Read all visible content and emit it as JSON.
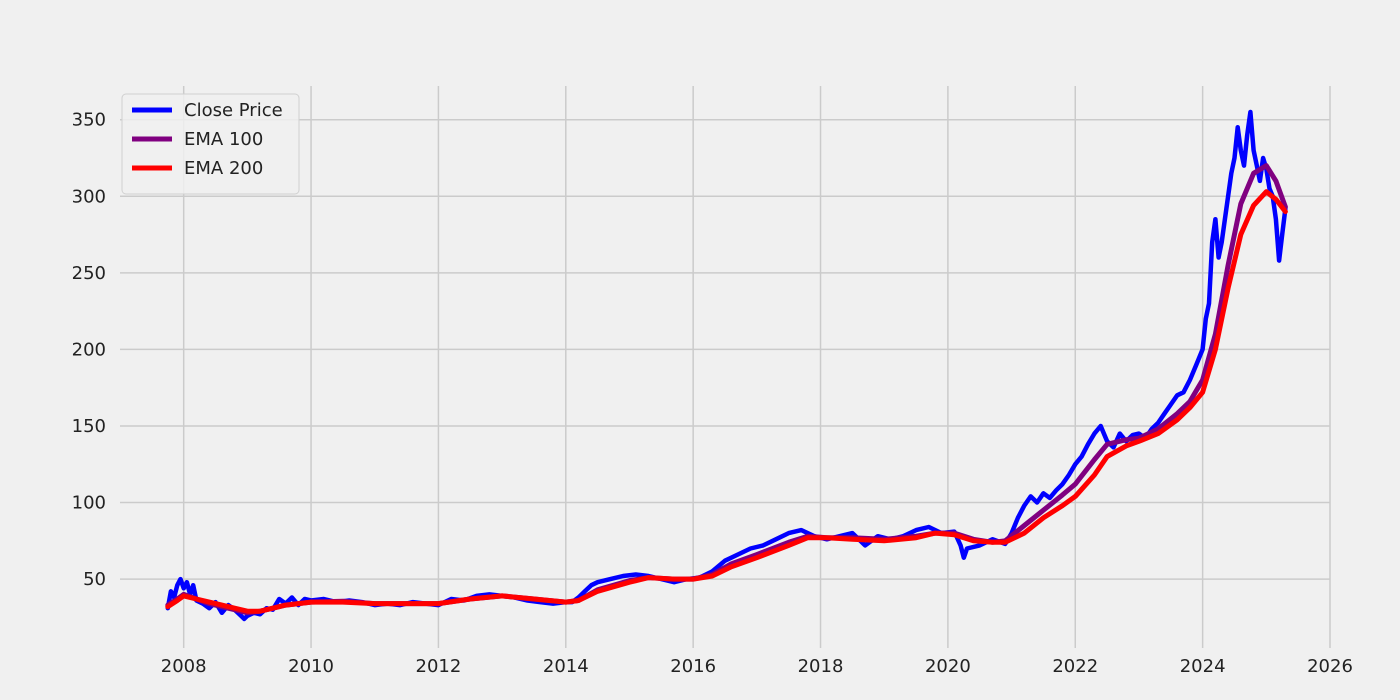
{
  "chart_data": {
    "type": "line",
    "title": "",
    "xlabel": "",
    "ylabel": "",
    "xlim": [
      2007.0,
      2026.0
    ],
    "ylim": [
      5,
      372
    ],
    "x_ticks": [
      2008,
      2010,
      2012,
      2014,
      2016,
      2018,
      2020,
      2022,
      2024,
      2026
    ],
    "x_tick_labels": [
      "2008",
      "2010",
      "2012",
      "2014",
      "2016",
      "2018",
      "2020",
      "2022",
      "2024",
      "2026"
    ],
    "y_ticks": [
      50,
      100,
      150,
      200,
      250,
      300,
      350
    ],
    "y_tick_labels": [
      "50",
      "100",
      "150",
      "200",
      "250",
      "300",
      "350"
    ],
    "grid": true,
    "legend_position": "top-left",
    "background": "#f0f0f0",
    "grid_color": "#cbcbcb",
    "series": [
      {
        "name": "Close Price",
        "color": "#0000ff",
        "points": [
          [
            2007.75,
            31
          ],
          [
            2007.8,
            42
          ],
          [
            2007.85,
            38
          ],
          [
            2007.9,
            46
          ],
          [
            2007.95,
            50
          ],
          [
            2008.0,
            44
          ],
          [
            2008.05,
            48
          ],
          [
            2008.1,
            40
          ],
          [
            2008.15,
            46
          ],
          [
            2008.2,
            36
          ],
          [
            2008.3,
            34
          ],
          [
            2008.4,
            31
          ],
          [
            2008.5,
            35
          ],
          [
            2008.6,
            28
          ],
          [
            2008.7,
            33
          ],
          [
            2008.8,
            30
          ],
          [
            2008.9,
            26
          ],
          [
            2008.95,
            24
          ],
          [
            2009.0,
            26
          ],
          [
            2009.1,
            28
          ],
          [
            2009.2,
            27
          ],
          [
            2009.3,
            31
          ],
          [
            2009.4,
            30
          ],
          [
            2009.5,
            37
          ],
          [
            2009.6,
            34
          ],
          [
            2009.7,
            38
          ],
          [
            2009.8,
            33
          ],
          [
            2009.9,
            37
          ],
          [
            2010.0,
            36
          ],
          [
            2010.2,
            37
          ],
          [
            2010.4,
            35
          ],
          [
            2010.6,
            36
          ],
          [
            2010.8,
            35
          ],
          [
            2011.0,
            33
          ],
          [
            2011.2,
            34
          ],
          [
            2011.4,
            33
          ],
          [
            2011.6,
            35
          ],
          [
            2011.8,
            34
          ],
          [
            2012.0,
            33
          ],
          [
            2012.2,
            37
          ],
          [
            2012.4,
            36
          ],
          [
            2012.6,
            39
          ],
          [
            2012.8,
            40
          ],
          [
            2013.0,
            39
          ],
          [
            2013.2,
            38
          ],
          [
            2013.4,
            36
          ],
          [
            2013.6,
            35
          ],
          [
            2013.8,
            34
          ],
          [
            2014.0,
            35
          ],
          [
            2014.1,
            35
          ],
          [
            2014.2,
            38
          ],
          [
            2014.3,
            42
          ],
          [
            2014.4,
            46
          ],
          [
            2014.5,
            48
          ],
          [
            2014.7,
            50
          ],
          [
            2014.9,
            52
          ],
          [
            2015.1,
            53
          ],
          [
            2015.3,
            52
          ],
          [
            2015.5,
            50
          ],
          [
            2015.7,
            48
          ],
          [
            2015.9,
            50
          ],
          [
            2016.1,
            51
          ],
          [
            2016.3,
            55
          ],
          [
            2016.5,
            62
          ],
          [
            2016.7,
            66
          ],
          [
            2016.9,
            70
          ],
          [
            2017.1,
            72
          ],
          [
            2017.3,
            76
          ],
          [
            2017.5,
            80
          ],
          [
            2017.7,
            82
          ],
          [
            2017.9,
            78
          ],
          [
            2018.1,
            76
          ],
          [
            2018.3,
            78
          ],
          [
            2018.5,
            80
          ],
          [
            2018.7,
            72
          ],
          [
            2018.9,
            78
          ],
          [
            2019.1,
            76
          ],
          [
            2019.3,
            78
          ],
          [
            2019.5,
            82
          ],
          [
            2019.7,
            84
          ],
          [
            2019.9,
            80
          ],
          [
            2020.1,
            81
          ],
          [
            2020.2,
            72
          ],
          [
            2020.25,
            64
          ],
          [
            2020.3,
            70
          ],
          [
            2020.5,
            72
          ],
          [
            2020.7,
            76
          ],
          [
            2020.9,
            73
          ],
          [
            2021.0,
            80
          ],
          [
            2021.1,
            90
          ],
          [
            2021.2,
            98
          ],
          [
            2021.3,
            104
          ],
          [
            2021.4,
            100
          ],
          [
            2021.5,
            106
          ],
          [
            2021.6,
            103
          ],
          [
            2021.7,
            108
          ],
          [
            2021.8,
            112
          ],
          [
            2021.9,
            118
          ],
          [
            2022.0,
            125
          ],
          [
            2022.1,
            130
          ],
          [
            2022.2,
            138
          ],
          [
            2022.3,
            145
          ],
          [
            2022.4,
            150
          ],
          [
            2022.5,
            140
          ],
          [
            2022.6,
            136
          ],
          [
            2022.7,
            145
          ],
          [
            2022.8,
            140
          ],
          [
            2022.9,
            144
          ],
          [
            2023.0,
            145
          ],
          [
            2023.1,
            142
          ],
          [
            2023.2,
            148
          ],
          [
            2023.3,
            152
          ],
          [
            2023.4,
            158
          ],
          [
            2023.5,
            164
          ],
          [
            2023.6,
            170
          ],
          [
            2023.7,
            172
          ],
          [
            2023.8,
            180
          ],
          [
            2023.9,
            190
          ],
          [
            2024.0,
            200
          ],
          [
            2024.05,
            220
          ],
          [
            2024.1,
            230
          ],
          [
            2024.15,
            270
          ],
          [
            2024.2,
            285
          ],
          [
            2024.25,
            260
          ],
          [
            2024.3,
            270
          ],
          [
            2024.35,
            285
          ],
          [
            2024.4,
            300
          ],
          [
            2024.45,
            315
          ],
          [
            2024.5,
            325
          ],
          [
            2024.55,
            345
          ],
          [
            2024.6,
            330
          ],
          [
            2024.65,
            320
          ],
          [
            2024.7,
            340
          ],
          [
            2024.75,
            355
          ],
          [
            2024.8,
            330
          ],
          [
            2024.85,
            320
          ],
          [
            2024.9,
            310
          ],
          [
            2024.95,
            325
          ],
          [
            2025.0,
            318
          ],
          [
            2025.05,
            305
          ],
          [
            2025.1,
            300
          ],
          [
            2025.15,
            285
          ],
          [
            2025.2,
            258
          ],
          [
            2025.25,
            275
          ],
          [
            2025.3,
            292
          ]
        ]
      },
      {
        "name": "EMA 100",
        "color": "#800080",
        "points": [
          [
            2007.75,
            33
          ],
          [
            2007.9,
            37
          ],
          [
            2008.0,
            40
          ],
          [
            2008.2,
            37
          ],
          [
            2008.4,
            34
          ],
          [
            2008.6,
            32
          ],
          [
            2008.8,
            30
          ],
          [
            2009.0,
            28
          ],
          [
            2009.2,
            29
          ],
          [
            2009.4,
            31
          ],
          [
            2009.6,
            33
          ],
          [
            2009.8,
            34
          ],
          [
            2010.0,
            35
          ],
          [
            2010.5,
            35.5
          ],
          [
            2011.0,
            34
          ],
          [
            2011.5,
            34
          ],
          [
            2012.0,
            34
          ],
          [
            2012.5,
            37
          ],
          [
            2013.0,
            39
          ],
          [
            2013.5,
            37
          ],
          [
            2014.0,
            35
          ],
          [
            2014.2,
            36
          ],
          [
            2014.5,
            43
          ],
          [
            2015.0,
            49
          ],
          [
            2015.3,
            51
          ],
          [
            2015.7,
            50
          ],
          [
            2016.0,
            50
          ],
          [
            2016.3,
            53
          ],
          [
            2016.6,
            60
          ],
          [
            2017.0,
            66
          ],
          [
            2017.5,
            74
          ],
          [
            2017.8,
            78
          ],
          [
            2018.1,
            77
          ],
          [
            2018.5,
            77
          ],
          [
            2019.0,
            76
          ],
          [
            2019.5,
            78
          ],
          [
            2019.8,
            80
          ],
          [
            2020.1,
            80
          ],
          [
            2020.4,
            76
          ],
          [
            2020.7,
            74
          ],
          [
            2020.9,
            75
          ],
          [
            2021.2,
            85
          ],
          [
            2021.5,
            95
          ],
          [
            2021.8,
            105
          ],
          [
            2022.0,
            112
          ],
          [
            2022.3,
            128
          ],
          [
            2022.5,
            138
          ],
          [
            2022.8,
            141
          ],
          [
            2023.0,
            142
          ],
          [
            2023.3,
            148
          ],
          [
            2023.6,
            158
          ],
          [
            2023.8,
            166
          ],
          [
            2024.0,
            180
          ],
          [
            2024.2,
            210
          ],
          [
            2024.4,
            255
          ],
          [
            2024.6,
            295
          ],
          [
            2024.8,
            315
          ],
          [
            2025.0,
            320
          ],
          [
            2025.15,
            310
          ],
          [
            2025.3,
            293
          ]
        ]
      },
      {
        "name": "EMA 200",
        "color": "#ff0000",
        "points": [
          [
            2007.75,
            32
          ],
          [
            2007.9,
            36
          ],
          [
            2008.0,
            39
          ],
          [
            2008.2,
            37
          ],
          [
            2008.4,
            35
          ],
          [
            2008.6,
            33
          ],
          [
            2008.8,
            31
          ],
          [
            2009.0,
            29
          ],
          [
            2009.2,
            29
          ],
          [
            2009.4,
            31
          ],
          [
            2009.6,
            33
          ],
          [
            2009.8,
            34
          ],
          [
            2010.0,
            35
          ],
          [
            2010.5,
            35
          ],
          [
            2011.0,
            34
          ],
          [
            2011.5,
            34
          ],
          [
            2012.0,
            34
          ],
          [
            2012.5,
            37
          ],
          [
            2013.0,
            39
          ],
          [
            2013.5,
            37
          ],
          [
            2014.0,
            35
          ],
          [
            2014.2,
            36
          ],
          [
            2014.5,
            42
          ],
          [
            2015.0,
            48
          ],
          [
            2015.3,
            51
          ],
          [
            2015.7,
            50
          ],
          [
            2016.0,
            50
          ],
          [
            2016.3,
            52
          ],
          [
            2016.6,
            58
          ],
          [
            2017.0,
            64
          ],
          [
            2017.5,
            72
          ],
          [
            2017.8,
            77
          ],
          [
            2018.1,
            77
          ],
          [
            2018.5,
            76
          ],
          [
            2019.0,
            75
          ],
          [
            2019.5,
            77
          ],
          [
            2019.8,
            80
          ],
          [
            2020.1,
            79
          ],
          [
            2020.4,
            75
          ],
          [
            2020.7,
            74
          ],
          [
            2020.9,
            74
          ],
          [
            2021.2,
            80
          ],
          [
            2021.5,
            90
          ],
          [
            2021.8,
            98
          ],
          [
            2022.0,
            104
          ],
          [
            2022.3,
            118
          ],
          [
            2022.5,
            130
          ],
          [
            2022.8,
            137
          ],
          [
            2023.0,
            140
          ],
          [
            2023.3,
            145
          ],
          [
            2023.6,
            154
          ],
          [
            2023.8,
            162
          ],
          [
            2024.0,
            172
          ],
          [
            2024.2,
            200
          ],
          [
            2024.4,
            240
          ],
          [
            2024.6,
            275
          ],
          [
            2024.8,
            294
          ],
          [
            2025.0,
            303
          ],
          [
            2025.15,
            298
          ],
          [
            2025.3,
            290
          ]
        ]
      }
    ]
  }
}
